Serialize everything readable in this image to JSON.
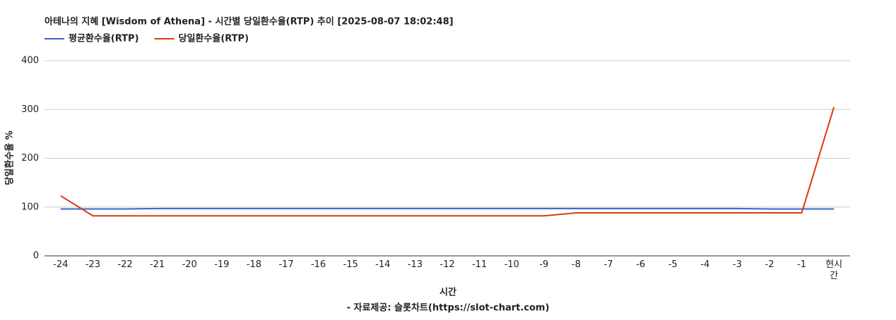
{
  "chart_data": {
    "type": "line",
    "title": "아테나의 지혜 [Wisdom of Athena] - 시간별 당일환수율(RTP) 추이 [2025-08-07 18:02:48]",
    "x_label": "시간",
    "y_label": "당일환수율 %",
    "subtitle": "- 자료제공: 슬롯차트(https://slot-chart.com)",
    "categories": [
      "-24",
      "-23",
      "-22",
      "-21",
      "-20",
      "-19",
      "-18",
      "-17",
      "-16",
      "-15",
      "-14",
      "-13",
      "-12",
      "-11",
      "-10",
      "-9",
      "-8",
      "-7",
      "-6",
      "-5",
      "-4",
      "-3",
      "-2",
      "-1",
      "현시간"
    ],
    "series": [
      {
        "name": "평균환수율(RTP)",
        "color": "#3366cc",
        "values": [
          96,
          96,
          96,
          97,
          97,
          97,
          97,
          97,
          97,
          97,
          97,
          97,
          97,
          97,
          97,
          97,
          97,
          97,
          97,
          97,
          97,
          97,
          96,
          96,
          96
        ]
      },
      {
        "name": "당일환수율(RTP)",
        "color": "#dc3912",
        "values": [
          123,
          82,
          82,
          82,
          82,
          82,
          82,
          82,
          82,
          82,
          82,
          82,
          82,
          82,
          82,
          82,
          88,
          88,
          88,
          88,
          88,
          88,
          88,
          88,
          305
        ]
      }
    ],
    "ylim": [
      0,
      400
    ],
    "yticks": [
      0,
      100,
      200,
      300,
      400
    ],
    "grid": true,
    "legend": "top-left"
  }
}
